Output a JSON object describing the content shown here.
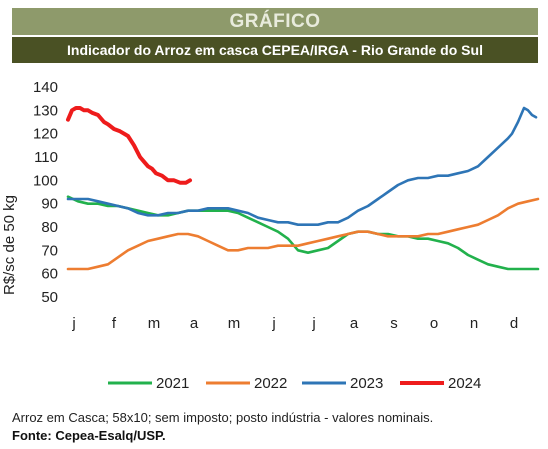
{
  "banner_title": "GRÁFICO",
  "chart_data": {
    "type": "line",
    "title": "Indicador do Arroz em casca CEPEA/IRGA - Rio Grande do Sul",
    "ylabel": "R$/sc de 50 kg",
    "xlabel": "",
    "ylim": [
      50,
      140
    ],
    "yticks": [
      50,
      60,
      70,
      80,
      90,
      100,
      110,
      120,
      130,
      140
    ],
    "x_tick_labels": [
      "j",
      "f",
      "m",
      "a",
      "m",
      "j",
      "j",
      "a",
      "s",
      "o",
      "n",
      "d"
    ],
    "xlim": [
      0,
      12
    ],
    "grid": false,
    "legend_position": "bottom",
    "series": [
      {
        "name": "2021",
        "color": "#22b14c",
        "x": [
          0.0,
          0.25,
          0.5,
          0.75,
          1.0,
          1.25,
          1.5,
          1.75,
          2.0,
          2.25,
          2.5,
          2.75,
          3.0,
          3.25,
          3.5,
          3.75,
          4.0,
          4.25,
          4.5,
          4.75,
          5.0,
          5.25,
          5.5,
          5.75,
          6.0,
          6.25,
          6.5,
          6.75,
          7.0,
          7.25,
          7.5,
          7.75,
          8.0,
          8.25,
          8.5,
          8.75,
          9.0,
          9.25,
          9.5,
          9.75,
          10.0,
          10.25,
          10.5,
          10.75,
          11.0,
          11.25,
          11.5,
          11.75
        ],
        "values": [
          93,
          91,
          90,
          90,
          89,
          89,
          88,
          87,
          86,
          85,
          85,
          86,
          87,
          87,
          87,
          87,
          87,
          86,
          84,
          82,
          80,
          78,
          75,
          70,
          69,
          70,
          71,
          74,
          77,
          78,
          78,
          77,
          77,
          76,
          76,
          75,
          75,
          74,
          73,
          71,
          68,
          66,
          64,
          63,
          62,
          62,
          62,
          62
        ]
      },
      {
        "name": "2022",
        "color": "#ed7d31",
        "x": [
          0.0,
          0.25,
          0.5,
          0.75,
          1.0,
          1.25,
          1.5,
          1.75,
          2.0,
          2.25,
          2.5,
          2.75,
          3.0,
          3.25,
          3.5,
          3.75,
          4.0,
          4.25,
          4.5,
          4.75,
          5.0,
          5.25,
          5.5,
          5.75,
          6.0,
          6.25,
          6.5,
          6.75,
          7.0,
          7.25,
          7.5,
          7.75,
          8.0,
          8.25,
          8.5,
          8.75,
          9.0,
          9.25,
          9.5,
          9.75,
          10.0,
          10.25,
          10.5,
          10.75,
          11.0,
          11.25,
          11.5,
          11.75
        ],
        "values": [
          62,
          62,
          62,
          63,
          64,
          67,
          70,
          72,
          74,
          75,
          76,
          77,
          77,
          76,
          74,
          72,
          70,
          70,
          71,
          71,
          71,
          72,
          72,
          72,
          73,
          74,
          75,
          76,
          77,
          78,
          78,
          77,
          76,
          76,
          76,
          76,
          77,
          77,
          78,
          79,
          80,
          81,
          83,
          85,
          88,
          90,
          91,
          92
        ]
      },
      {
        "name": "2023",
        "color": "#2e75b6",
        "x": [
          0.0,
          0.25,
          0.5,
          0.75,
          1.0,
          1.25,
          1.5,
          1.75,
          2.0,
          2.25,
          2.5,
          2.75,
          3.0,
          3.25,
          3.5,
          3.75,
          4.0,
          4.25,
          4.5,
          4.75,
          5.0,
          5.25,
          5.5,
          5.75,
          6.0,
          6.25,
          6.5,
          6.75,
          7.0,
          7.25,
          7.5,
          7.75,
          8.0,
          8.25,
          8.5,
          8.75,
          9.0,
          9.25,
          9.5,
          9.75,
          10.0,
          10.25,
          10.5,
          10.75,
          11.0,
          11.1,
          11.25,
          11.4,
          11.5,
          11.6,
          11.7
        ],
        "values": [
          92,
          92,
          92,
          91,
          90,
          89,
          88,
          86,
          85,
          85,
          86,
          86,
          87,
          87,
          88,
          88,
          88,
          87,
          86,
          84,
          83,
          82,
          82,
          81,
          81,
          81,
          82,
          82,
          84,
          87,
          89,
          92,
          95,
          98,
          100,
          101,
          101,
          102,
          102,
          103,
          104,
          106,
          110,
          114,
          118,
          120,
          125,
          131,
          130,
          128,
          127
        ]
      },
      {
        "name": "2024",
        "color": "#ee1c1c",
        "x": [
          0.0,
          0.1,
          0.2,
          0.3,
          0.4,
          0.5,
          0.6,
          0.75,
          0.9,
          1.0,
          1.15,
          1.3,
          1.5,
          1.65,
          1.8,
          1.9,
          2.0,
          2.1,
          2.2,
          2.35,
          2.5,
          2.65,
          2.8,
          2.95,
          3.05
        ],
        "values": [
          126,
          130,
          131,
          131,
          130,
          130,
          129,
          128,
          125,
          124,
          122,
          121,
          119,
          115,
          110,
          108,
          106,
          105,
          103,
          102,
          100,
          100,
          99,
          99,
          100
        ]
      }
    ]
  },
  "footer": {
    "note": "Arroz em Casca; 58x10; sem imposto; posto indústria - valores nominais.",
    "source": "Fonte: Cepea-Esalq/USP."
  }
}
